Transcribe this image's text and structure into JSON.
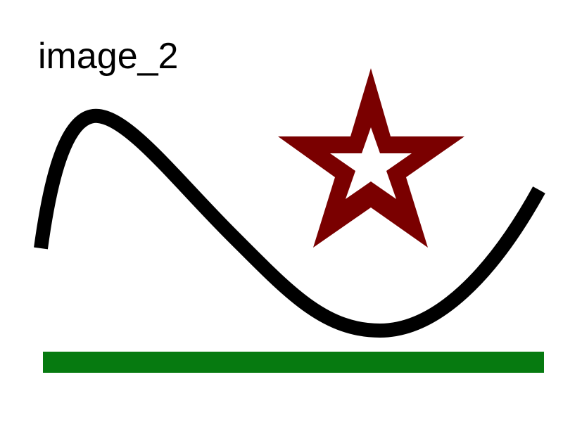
{
  "title": "image_2",
  "colors": {
    "background": "#ffffff",
    "curve": "#000000",
    "star_outer": "#7a0000",
    "star_inner": "#ffffff",
    "bar": "#067a10"
  },
  "shapes": {
    "curve": "black-wave-curve",
    "star": "dark-red-outlined-star",
    "bar": "green-horizontal-bar"
  }
}
